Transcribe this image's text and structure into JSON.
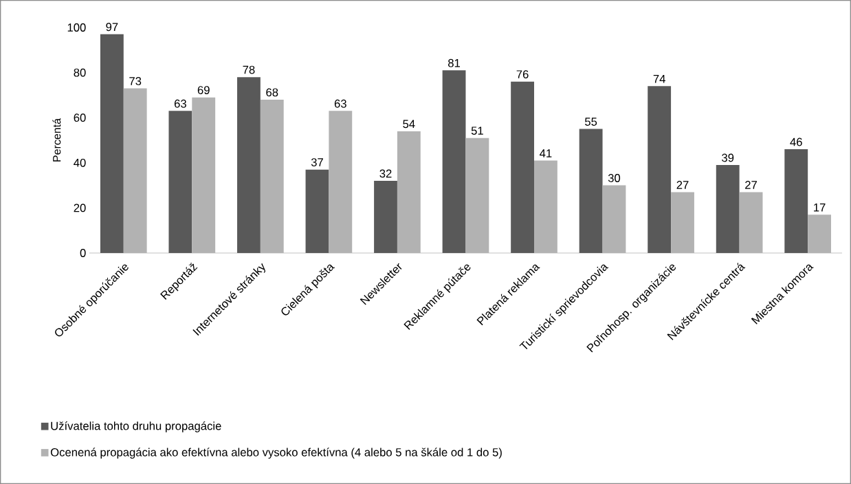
{
  "chart_data": {
    "type": "bar",
    "ylabel": "Percentá",
    "categories": [
      "Osobné oporúčanie",
      "Reportáž",
      "Internetové stránky",
      "Cielená pošta",
      "Newsletter",
      "Reklamné pútače",
      "Platená reklama",
      "Turistickí sprievodcovia",
      "Poľnohosp. organizácie",
      "Návštevnícke centrá",
      "Miestna komora"
    ],
    "series": [
      {
        "name": "Užívatelia tohto druhu propagácie",
        "color": "#595959",
        "values": [
          97,
          63,
          78,
          37,
          32,
          81,
          76,
          55,
          74,
          39,
          46
        ]
      },
      {
        "name": "Ocenená propagácia ako efektívna alebo vysoko efektívna (4 alebo 5 na škále od 1 do 5)",
        "color": "#b2b2b2",
        "values": [
          73,
          69,
          68,
          63,
          54,
          51,
          41,
          30,
          27,
          27,
          17
        ]
      }
    ],
    "ylim": [
      0,
      100
    ],
    "yticks": [
      0,
      20,
      40,
      60,
      80,
      100
    ],
    "data_labels": true,
    "grid": false,
    "legend": "bottom left"
  }
}
